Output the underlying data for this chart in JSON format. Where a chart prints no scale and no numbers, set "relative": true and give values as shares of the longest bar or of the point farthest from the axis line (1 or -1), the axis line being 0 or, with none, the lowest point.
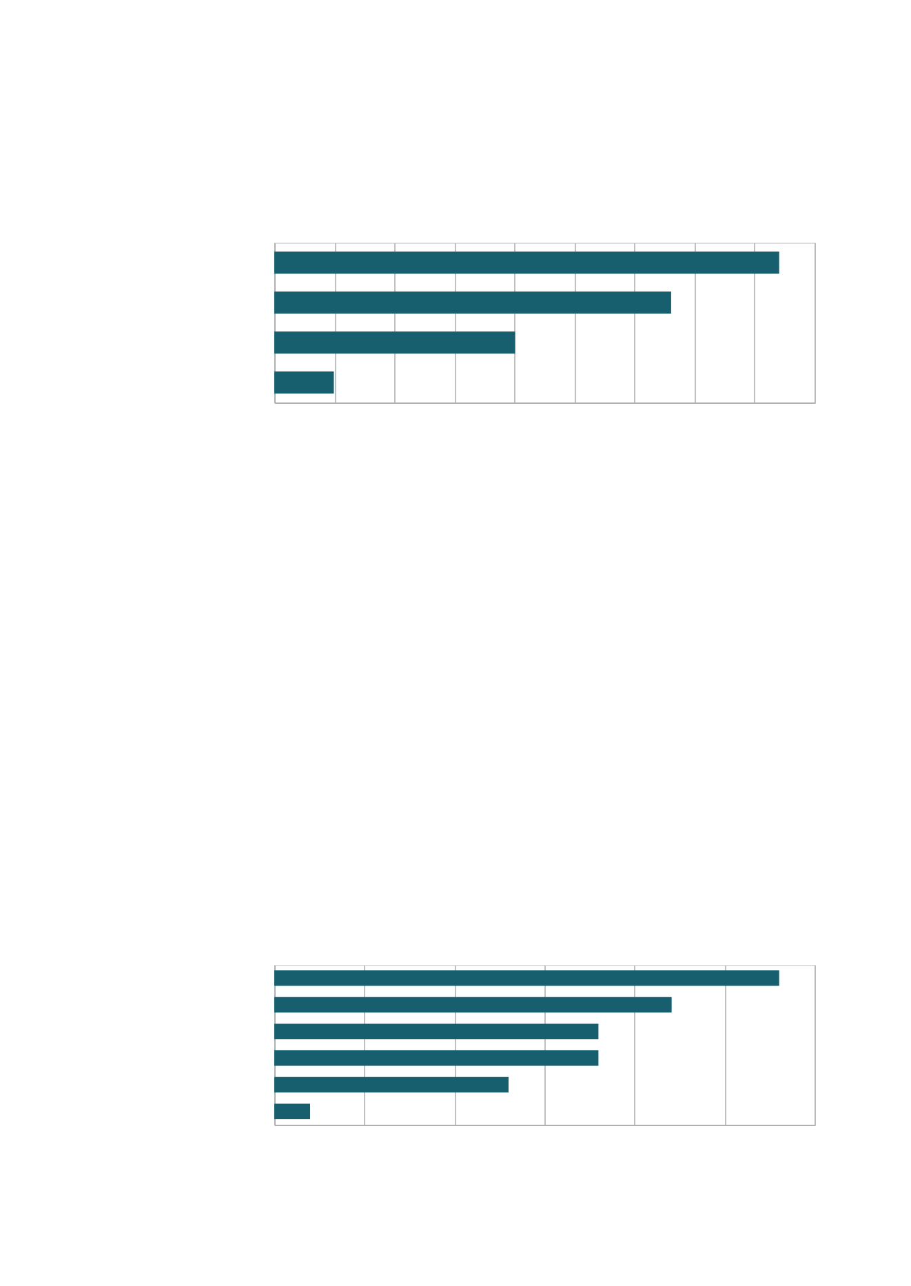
{
  "chart_data": [
    {
      "type": "bar",
      "orientation": "horizontal",
      "relative": true,
      "categories": [
        null,
        null,
        null,
        null
      ],
      "values": [
        1,
        0.786,
        0.477,
        0.118
      ],
      "color": "#175f6e",
      "grid": "x"
    },
    {
      "type": "bar",
      "orientation": "horizontal",
      "relative": true,
      "categories": [
        null,
        null,
        null,
        null,
        null,
        null
      ],
      "values": [
        1,
        0.787,
        0.642,
        0.642,
        0.464,
        0.071
      ],
      "color": "#175f6e",
      "grid": "x"
    }
  ]
}
